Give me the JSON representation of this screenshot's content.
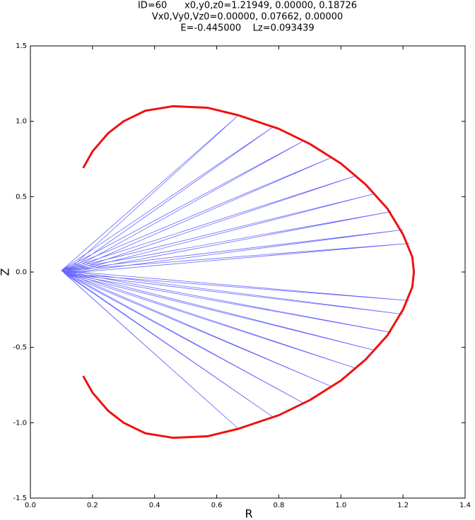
{
  "chart_data": {
    "type": "line",
    "title_lines": [
      "ID=60      x0,y0,z0=1.21949, 0.00000, 0.18726",
      "Vx0,Vy0,Vz0=0.00000, 0.07662, 0.00000",
      "E=-0.445000    Lz=0.093439"
    ],
    "xlabel": "R",
    "ylabel": "Z",
    "xlim": [
      0,
      1.4
    ],
    "ylim": [
      -1.5,
      1.5
    ],
    "xticks": [
      {
        "value": 0,
        "label": "0.0"
      },
      0.2,
      0.4,
      0.6,
      0.8,
      {
        "value": 1,
        "label": "1.0"
      },
      1.2,
      1.4
    ],
    "yticks": [
      {
        "value": -1.5,
        "label": "-1.5"
      },
      {
        "value": -1,
        "label": "-1.0"
      },
      -0.5,
      {
        "value": 0,
        "label": "0.0"
      },
      0.5,
      {
        "value": 1,
        "label": "1.0"
      },
      1.5
    ],
    "grid": false,
    "series": [
      {
        "color": "#0000ff",
        "x": [
          0.1,
          0.67,
          0.11,
          0.67,
          0.1,
          0.78,
          0.11,
          0.78,
          0.1,
          0.88,
          0.11,
          0.88,
          0.1,
          0.97,
          0.11,
          0.97,
          0.1,
          1.05,
          0.11,
          1.05,
          0.1,
          1.11,
          0.11,
          1.11,
          0.1,
          1.16,
          0.11,
          1.16,
          0.1,
          1.2,
          0.11,
          1.2,
          0.1,
          1.22,
          0.11,
          1.22,
          0.1
        ],
        "values": [
          0.01,
          1.04,
          -0.01,
          -1.04,
          0.01,
          0.96,
          -0.01,
          -0.96,
          0.01,
          0.87,
          -0.01,
          -0.87,
          0.01,
          0.76,
          -0.01,
          -0.76,
          0.01,
          0.64,
          -0.01,
          -0.64,
          0.01,
          0.52,
          -0.01,
          -0.52,
          0.01,
          0.4,
          -0.01,
          -0.4,
          0.01,
          0.28,
          -0.01,
          -0.28,
          0.01,
          0.19,
          -0.01,
          -0.19,
          0.01
        ]
      },
      {
        "color": "#ee1111",
        "x": [
          0.17,
          0.2,
          0.25,
          0.3,
          0.37,
          0.46,
          0.57,
          0.67,
          0.8,
          0.9,
          1.0,
          1.08,
          1.15,
          1.2,
          1.23,
          1.235,
          1.23,
          1.2,
          1.15,
          1.08,
          1.0,
          0.9,
          0.8,
          0.67,
          0.57,
          0.46,
          0.37,
          0.3,
          0.25,
          0.2,
          0.17
        ],
        "values": [
          0.69,
          0.8,
          0.92,
          1.0,
          1.07,
          1.1,
          1.09,
          1.04,
          0.95,
          0.85,
          0.72,
          0.58,
          0.42,
          0.25,
          0.1,
          0,
          -0.1,
          -0.25,
          -0.42,
          -0.58,
          -0.72,
          -0.85,
          -0.95,
          -1.04,
          -1.09,
          -1.1,
          -1.07,
          -1.0,
          -0.92,
          -0.8,
          -0.69
        ]
      }
    ]
  }
}
